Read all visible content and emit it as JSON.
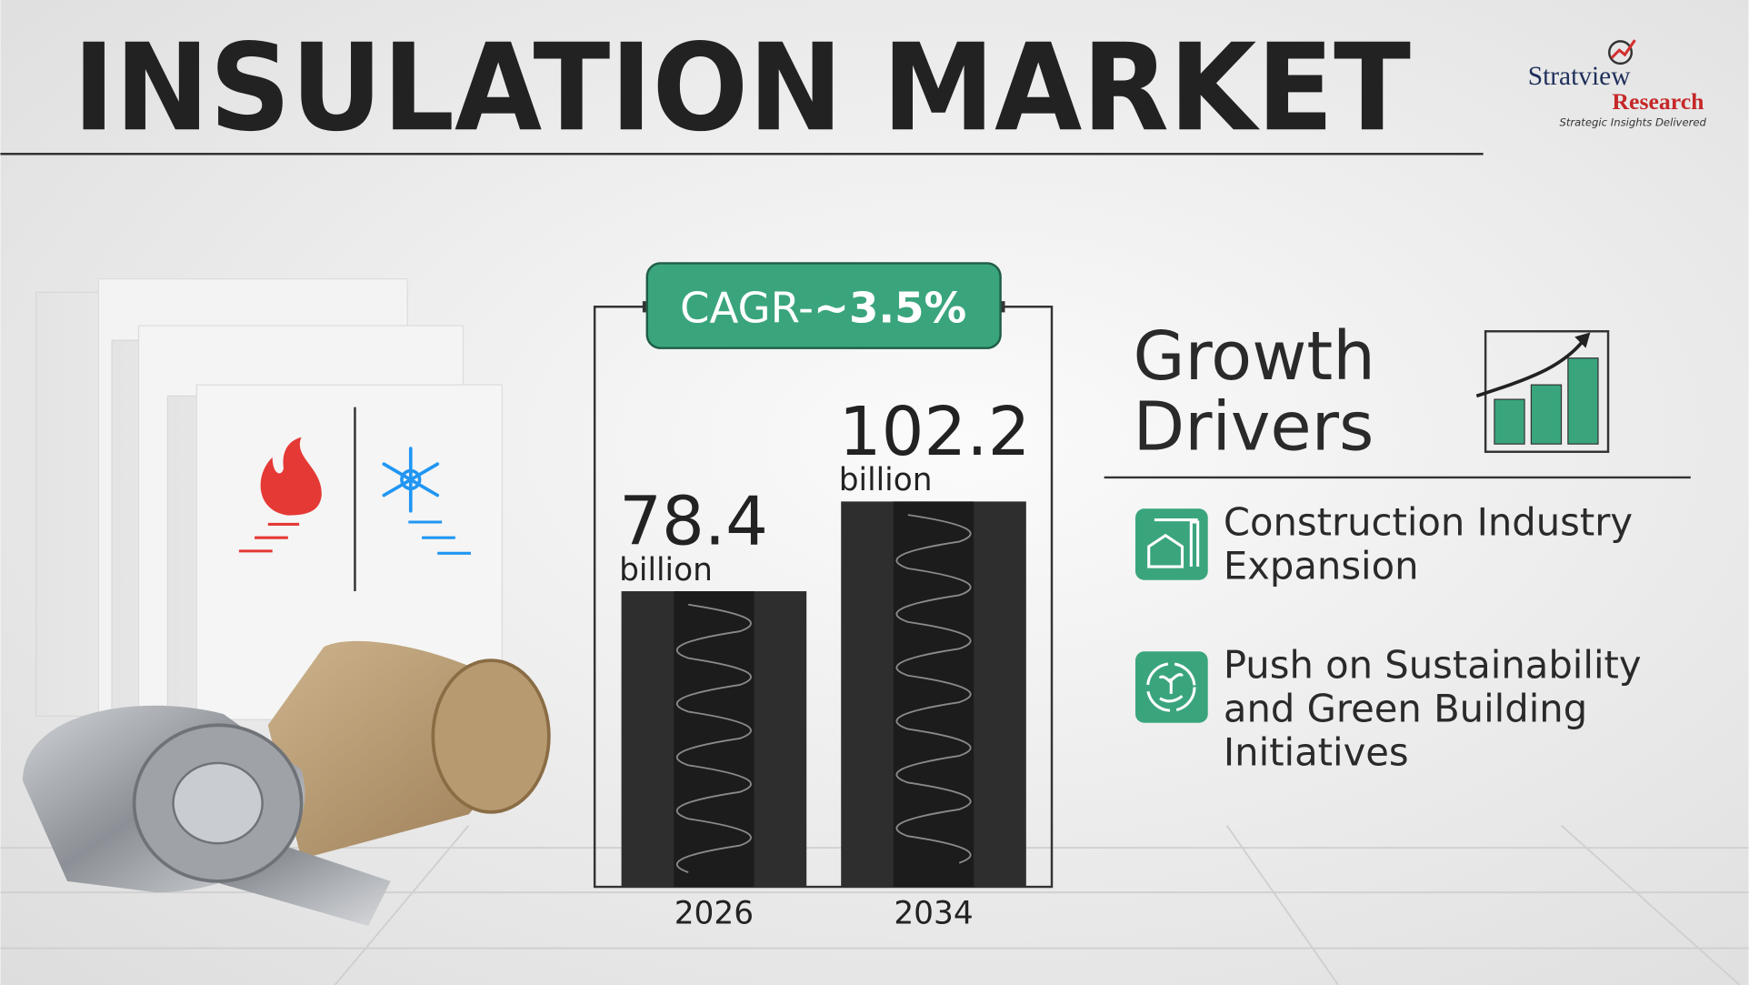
{
  "header": {
    "title": "INSULATION MARKET",
    "logo": {
      "name": "Stratview",
      "sub": "Research",
      "tagline": "Strategic Insights Delivered"
    }
  },
  "chart_data": {
    "type": "bar",
    "cagr": {
      "label": "CAGR-",
      "value": "~3.5%"
    },
    "categories": [
      "2026",
      "2034"
    ],
    "values": [
      78.4,
      102.2
    ],
    "unit": "billion",
    "color": "#2e2e2e",
    "ylim": [
      0,
      120
    ]
  },
  "drivers": {
    "title_lines": [
      "Growth",
      "Drivers"
    ],
    "items": [
      {
        "lines": [
          "Construction Industry",
          "Expansion"
        ]
      },
      {
        "lines": [
          "Push on Sustainability",
          "and Green Building",
          "Initiatives"
        ]
      }
    ]
  }
}
